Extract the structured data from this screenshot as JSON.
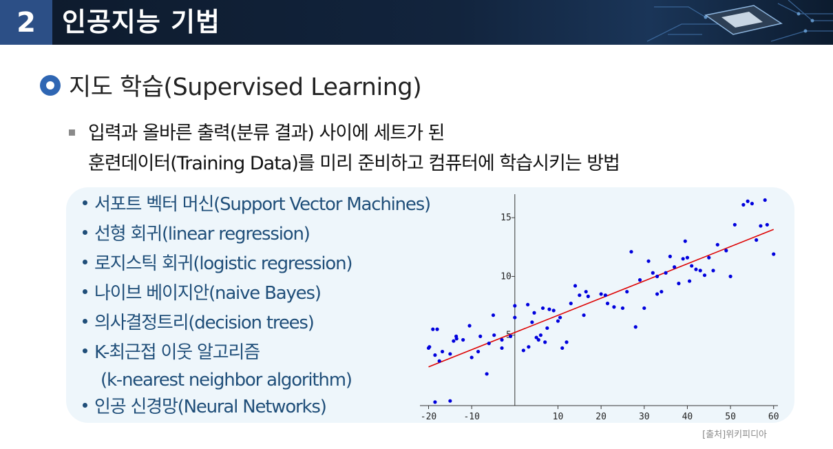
{
  "header": {
    "number": "2",
    "title": "인공지능 기법"
  },
  "section": {
    "title": "지도 학습(Supervised Learning)"
  },
  "description": {
    "lines": [
      "입력과 올바른 출력(분류 결과) 사이에 세트가 된",
      "훈련데이터(Training Data)를 미리 준비하고 컴퓨터에 학습시키는 방법"
    ]
  },
  "methods": [
    "서포트 벡터 머신(Support Vector Machines)",
    "선형 회귀(linear regression)",
    "로지스틱 회귀(logistic regression)",
    "나이브 베이지안(naive Bayes)",
    "의사결정트리(decision trees)",
    "K-최근접 이웃 알고리즘",
    "(k-nearest neighbor algorithm)",
    "인공 신경망(Neural Networks)"
  ],
  "source": "[출처]위키피디아",
  "colors": {
    "header_bg": "#12243d",
    "number_bg": "#2c4f86",
    "accent": "#2f66b3",
    "list_text": "#1f4e79",
    "points": "#0000dd",
    "line": "#dd0000"
  },
  "chart_data": {
    "type": "scatter",
    "xlim": [
      -22,
      61
    ],
    "ylim": [
      -1,
      17
    ],
    "xticks": [
      -20,
      -10,
      10,
      20,
      30,
      40,
      50,
      60
    ],
    "yticks": [
      5,
      10,
      15
    ],
    "fit_line": [
      [
        -20,
        2.3
      ],
      [
        60,
        14.0
      ]
    ],
    "points": [
      [
        -20,
        3.9
      ],
      [
        -19.8,
        4.0
      ],
      [
        -19,
        5.5
      ],
      [
        -18.5,
        3.3
      ],
      [
        -18,
        5.5
      ],
      [
        -17.5,
        2.8
      ],
      [
        -16.8,
        3.6
      ],
      [
        -15,
        3.4
      ],
      [
        -14.2,
        4.5
      ],
      [
        -13.6,
        4.9
      ],
      [
        -13.5,
        4.7
      ],
      [
        -12,
        4.6
      ],
      [
        -10.5,
        5.8
      ],
      [
        -10,
        3.1
      ],
      [
        -8.5,
        3.6
      ],
      [
        -8,
        4.9
      ],
      [
        -6.5,
        1.7
      ],
      [
        -6,
        4.3
      ],
      [
        -5,
        6.7
      ],
      [
        -4.8,
        5.0
      ],
      [
        -3,
        3.9
      ],
      [
        -3,
        4.6
      ],
      [
        -1,
        4.9
      ],
      [
        0,
        7.5
      ],
      [
        0,
        6.5
      ],
      [
        2,
        3.7
      ],
      [
        3,
        7.6
      ],
      [
        3.2,
        4.0
      ],
      [
        4,
        6.1
      ],
      [
        4.5,
        6.9
      ],
      [
        5,
        4.8
      ],
      [
        5.5,
        4.6
      ],
      [
        6,
        5.0
      ],
      [
        6.5,
        7.3
      ],
      [
        7,
        4.4
      ],
      [
        7.5,
        5.6
      ],
      [
        8,
        7.2
      ],
      [
        9,
        7.1
      ],
      [
        10,
        6.2
      ],
      [
        10.5,
        6.5
      ],
      [
        11,
        3.9
      ],
      [
        12,
        4.4
      ],
      [
        13,
        7.7
      ],
      [
        14,
        9.2
      ],
      [
        15,
        8.4
      ],
      [
        16,
        6.7
      ],
      [
        16.5,
        8.7
      ],
      [
        17,
        8.3
      ],
      [
        20,
        8.5
      ],
      [
        21,
        8.4
      ],
      [
        21.5,
        7.7
      ],
      [
        23,
        7.4
      ],
      [
        25,
        7.3
      ],
      [
        26,
        8.7
      ],
      [
        27,
        12.1
      ],
      [
        28,
        5.7
      ],
      [
        29,
        9.7
      ],
      [
        30,
        7.3
      ],
      [
        31,
        11.3
      ],
      [
        32,
        10.3
      ],
      [
        33,
        10.0
      ],
      [
        33,
        8.5
      ],
      [
        34,
        8.7
      ],
      [
        35,
        10.3
      ],
      [
        36,
        11.7
      ],
      [
        37,
        10.8
      ],
      [
        38,
        9.4
      ],
      [
        39,
        11.5
      ],
      [
        39.5,
        13.0
      ],
      [
        40,
        11.6
      ],
      [
        40.5,
        9.6
      ],
      [
        41,
        10.9
      ],
      [
        42,
        10.6
      ],
      [
        43,
        10.5
      ],
      [
        44,
        10.1
      ],
      [
        45,
        11.6
      ],
      [
        46,
        10.5
      ],
      [
        47,
        12.7
      ],
      [
        49,
        12.2
      ],
      [
        50,
        10.0
      ],
      [
        51,
        14.4
      ],
      [
        53,
        16.1
      ],
      [
        54,
        16.4
      ],
      [
        55,
        16.2
      ],
      [
        56,
        13.1
      ],
      [
        57,
        14.3
      ],
      [
        58,
        16.5
      ],
      [
        58.5,
        14.4
      ],
      [
        60,
        11.9
      ],
      [
        -15,
        -0.6
      ],
      [
        -18.5,
        -0.7
      ]
    ]
  }
}
